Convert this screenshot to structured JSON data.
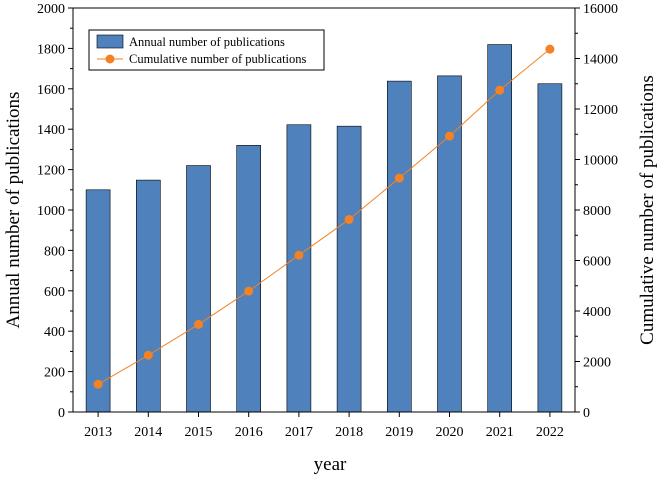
{
  "chart_data": {
    "type": "bar+line",
    "title": "",
    "xlabel": "year",
    "ylabel_left": "Annual number of publications",
    "ylabel_right": "Cumulative number of publications",
    "categories": [
      "2013",
      "2014",
      "2015",
      "2016",
      "2017",
      "2018",
      "2019",
      "2020",
      "2021",
      "2022"
    ],
    "series": [
      {
        "name": "Annual number of publications",
        "type": "bar",
        "axis": "left",
        "color": "#4f81bd",
        "values": [
          1100,
          1148,
          1220,
          1320,
          1422,
          1415,
          1638,
          1664,
          1819,
          1625
        ]
      },
      {
        "name": "Cumulative number of publications",
        "type": "line",
        "axis": "right",
        "color": "#f28224",
        "values": [
          1100,
          2248,
          3468,
          4788,
          6210,
          7625,
          9263,
          10927,
          12746,
          14371
        ]
      }
    ],
    "y_left": {
      "min": 0,
      "max": 2000,
      "ticks": [
        0,
        200,
        400,
        600,
        800,
        1000,
        1200,
        1400,
        1600,
        1800,
        2000
      ]
    },
    "y_right": {
      "min": 0,
      "max": 16000,
      "ticks": [
        0,
        2000,
        4000,
        6000,
        8000,
        10000,
        12000,
        14000,
        16000
      ]
    },
    "legend_position": "top-left",
    "grid": false
  }
}
